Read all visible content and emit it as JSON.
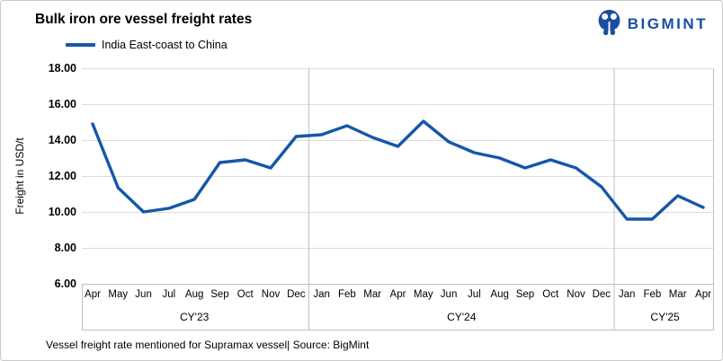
{
  "title": "Bulk iron ore vessel freight rates",
  "logo": {
    "text": "BIGMINT",
    "icon": "bigmint-people-icon"
  },
  "legend": {
    "label": "India East-coast to China"
  },
  "footer": {
    "note": "Vessel freight rate mentioned for Supramax vessel| Source: BigMint"
  },
  "colors": {
    "line": "#1557A8",
    "logo_blue": "#1B4EA2",
    "gridline": "#DCDCDC",
    "axis_line": "#BFBFBF",
    "text": "#000000"
  },
  "chart_data": {
    "type": "line",
    "title": "Bulk iron ore vessel freight rates",
    "ylabel": "Freight in USD/t",
    "xlabel": "",
    "ylim": [
      6,
      18
    ],
    "ytick_labels": [
      "18.00",
      "16.00",
      "14.00",
      "12.00",
      "10.00",
      "8.00",
      "6.00"
    ],
    "grid": true,
    "legend_position": "top-left",
    "categories": [
      "Apr",
      "May",
      "Jun",
      "Jul",
      "Aug",
      "Sep",
      "Oct",
      "Nov",
      "Dec",
      "Jan",
      "Feb",
      "Mar",
      "Apr",
      "May",
      "Jun",
      "Jul",
      "Aug",
      "Sep",
      "Oct",
      "Nov",
      "Dec",
      "Jan",
      "Feb",
      "Mar",
      "Apr"
    ],
    "year_groups": [
      {
        "label": "CY'23",
        "start_index": 0,
        "end_index": 8
      },
      {
        "label": "CY'24",
        "start_index": 9,
        "end_index": 20
      },
      {
        "label": "CY'25",
        "start_index": 21,
        "end_index": 24
      }
    ],
    "series": [
      {
        "name": "India East-coast to China",
        "color": "#1557A8",
        "values": [
          14.9,
          11.35,
          10.0,
          10.2,
          10.7,
          12.75,
          12.9,
          12.45,
          14.2,
          14.3,
          14.8,
          14.15,
          13.65,
          15.05,
          13.9,
          13.3,
          13.0,
          12.45,
          12.9,
          12.45,
          11.4,
          9.6,
          9.6,
          10.9,
          10.25
        ]
      }
    ]
  }
}
